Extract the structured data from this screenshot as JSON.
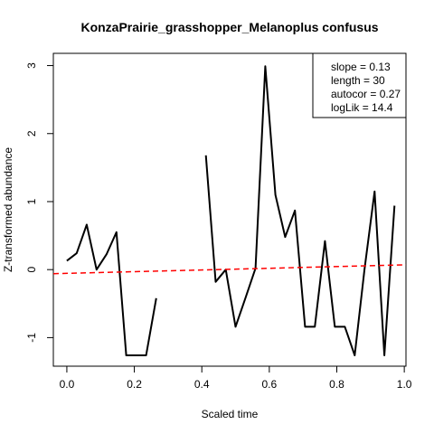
{
  "chart_data": {
    "type": "line",
    "title": "KonzaPrairie_grasshopper_Melanoplus confusus",
    "xlabel": "Scaled time",
    "ylabel": "Z-transformed abundance",
    "xlim": [
      -0.04,
      1.005
    ],
    "ylim": [
      -1.42,
      3.18
    ],
    "x_ticks": [
      0.0,
      0.2,
      0.4,
      0.6,
      0.8,
      1.0
    ],
    "x_tick_labels": [
      "0.0",
      "0.2",
      "0.4",
      "0.6",
      "0.8",
      "1.0"
    ],
    "y_ticks": [
      -1,
      0,
      1,
      2,
      3
    ],
    "y_tick_labels": [
      "-1",
      "0",
      "1",
      "2",
      "3"
    ],
    "grid": false,
    "series": [
      {
        "color": "#000000",
        "x": [
          0.0,
          0.029,
          0.059,
          0.088,
          0.118,
          0.147,
          0.176,
          0.206,
          0.235,
          0.265,
          0.294,
          0.324,
          0.353,
          0.382,
          0.412,
          0.441,
          0.471,
          0.5,
          0.529,
          0.559,
          0.588,
          0.618,
          0.647,
          0.676,
          0.706,
          0.735,
          0.765,
          0.794,
          0.824,
          0.853,
          0.882,
          0.912,
          0.941,
          0.971
        ],
        "y": [
          0.13,
          0.24,
          0.66,
          0.0,
          0.23,
          0.55,
          -1.26,
          -1.26,
          -1.26,
          -0.42,
          null,
          null,
          null,
          null,
          1.68,
          -0.18,
          0.0,
          -0.84,
          -0.42,
          0.02,
          2.99,
          1.1,
          0.48,
          0.87,
          -0.84,
          -0.84,
          0.42,
          -0.84,
          -0.84,
          -1.26,
          0.0,
          1.15,
          -1.26,
          0.94
        ]
      }
    ],
    "trend_line": {
      "color": "#ff0000",
      "style": "dashed",
      "x": [
        -0.04,
        1.005
      ],
      "y": [
        -0.06,
        0.07
      ]
    },
    "legend": {
      "position": "top-right",
      "lines": [
        "slope = 0.13",
        "length = 30",
        "autocor = 0.27",
        "logLik = 14.4"
      ]
    }
  }
}
